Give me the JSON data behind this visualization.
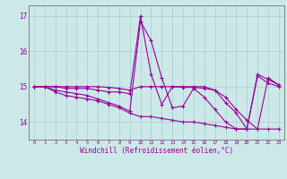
{
  "xlabel": "Windchill (Refroidissement éolien,°C)",
  "bg_color": "#cce8e8",
  "line_color": "#990099",
  "grid_color": "#a8cece",
  "xlim": [
    -0.5,
    23.5
  ],
  "ylim": [
    13.5,
    17.3
  ],
  "yticks": [
    14,
    15,
    16,
    17
  ],
  "xticks": [
    0,
    1,
    2,
    3,
    4,
    5,
    6,
    7,
    8,
    9,
    10,
    11,
    12,
    13,
    14,
    15,
    16,
    17,
    18,
    19,
    20,
    21,
    22,
    23
  ],
  "series1": [
    15.0,
    15.0,
    14.85,
    14.75,
    14.7,
    14.65,
    14.6,
    14.5,
    14.4,
    14.25,
    14.15,
    14.15,
    14.1,
    14.05,
    14.0,
    14.0,
    13.95,
    13.9,
    13.85,
    13.8,
    13.8,
    13.8,
    13.8,
    13.8
  ],
  "series2": [
    15.0,
    15.0,
    14.9,
    14.85,
    14.8,
    14.75,
    14.65,
    14.55,
    14.45,
    14.3,
    16.85,
    16.3,
    15.25,
    14.4,
    14.45,
    14.95,
    14.7,
    14.35,
    14.0,
    13.8,
    13.8,
    15.3,
    15.1,
    15.0
  ],
  "series3": [
    15.0,
    15.0,
    15.0,
    14.95,
    14.95,
    14.95,
    14.9,
    14.85,
    14.85,
    14.8,
    17.0,
    15.35,
    14.5,
    15.0,
    15.0,
    15.0,
    15.0,
    14.9,
    14.55,
    14.25,
    13.8,
    15.35,
    15.2,
    15.05
  ],
  "series4": [
    15.0,
    15.0,
    15.0,
    15.0,
    15.0,
    15.0,
    15.0,
    14.98,
    14.95,
    14.9,
    15.0,
    15.0,
    15.0,
    15.0,
    14.98,
    14.98,
    14.95,
    14.9,
    14.7,
    14.35,
    14.05,
    13.8,
    15.25,
    15.05
  ]
}
